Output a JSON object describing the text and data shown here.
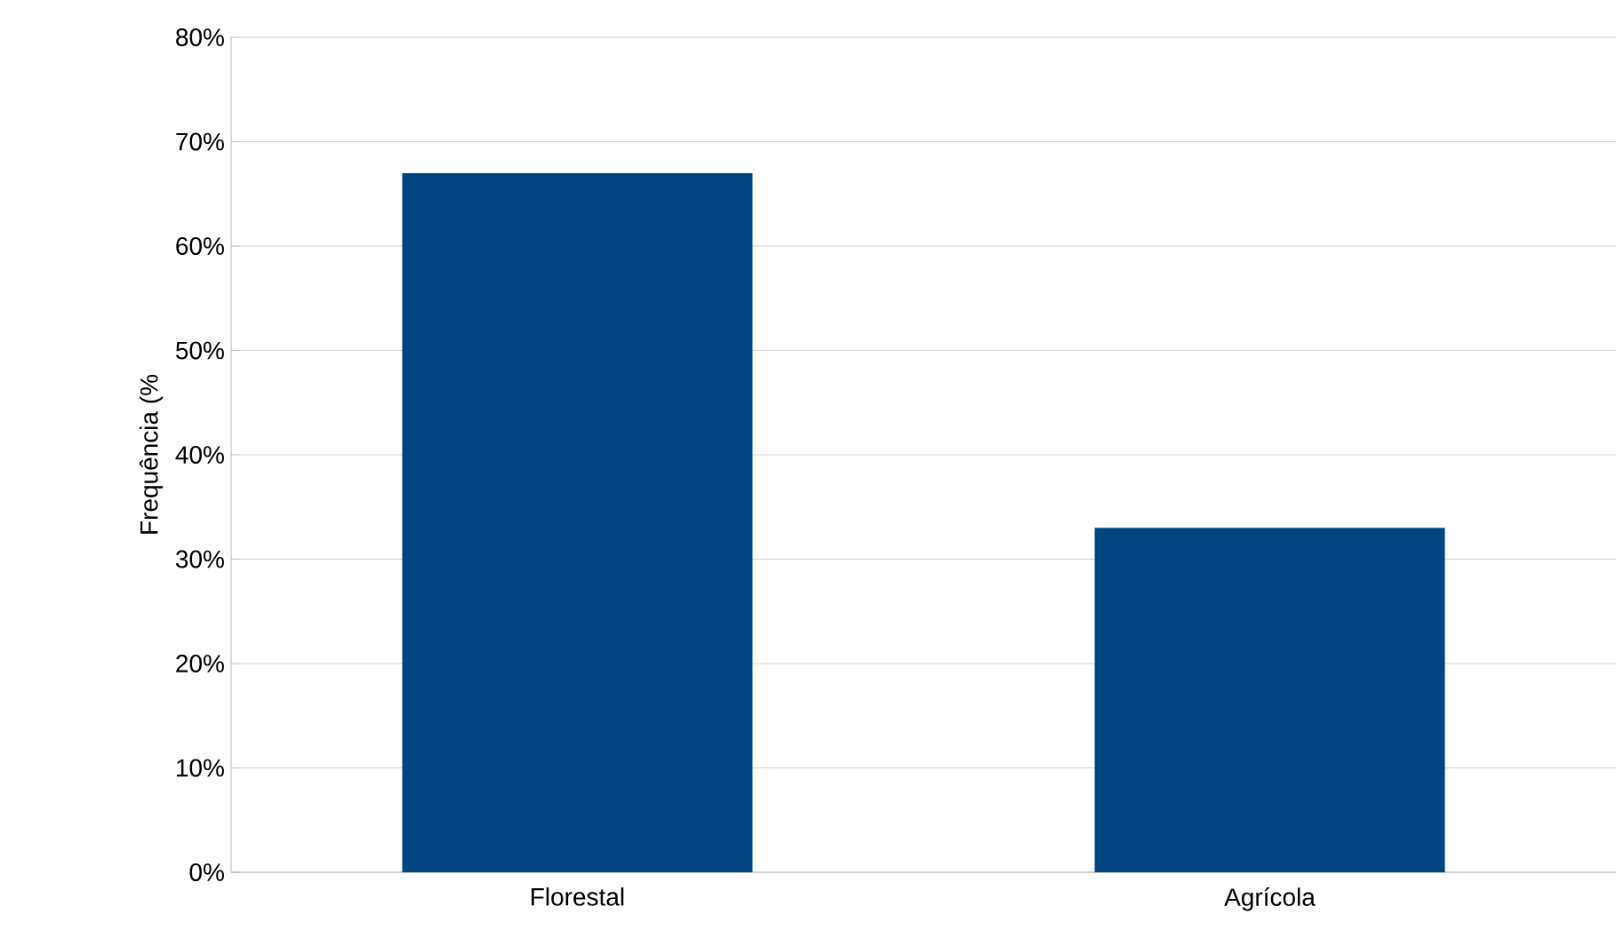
{
  "chart_data": {
    "type": "bar",
    "ylabel": "Frequência (%",
    "categories": [
      "Florestal",
      "Agrícola"
    ],
    "values": [
      67,
      33
    ],
    "color": "#00457f",
    "ylim": [
      0,
      80
    ],
    "yticks": [
      {
        "value": 0,
        "label": "0%"
      },
      {
        "value": 10,
        "label": "10%"
      },
      {
        "value": 20,
        "label": "20%"
      },
      {
        "value": 30,
        "label": "30%"
      },
      {
        "value": 40,
        "label": "40%"
      },
      {
        "value": 50,
        "label": "50%"
      },
      {
        "value": 60,
        "label": "60%"
      },
      {
        "value": 70,
        "label": "70%"
      },
      {
        "value": 80,
        "label": "80%"
      }
    ],
    "grid": "y"
  }
}
